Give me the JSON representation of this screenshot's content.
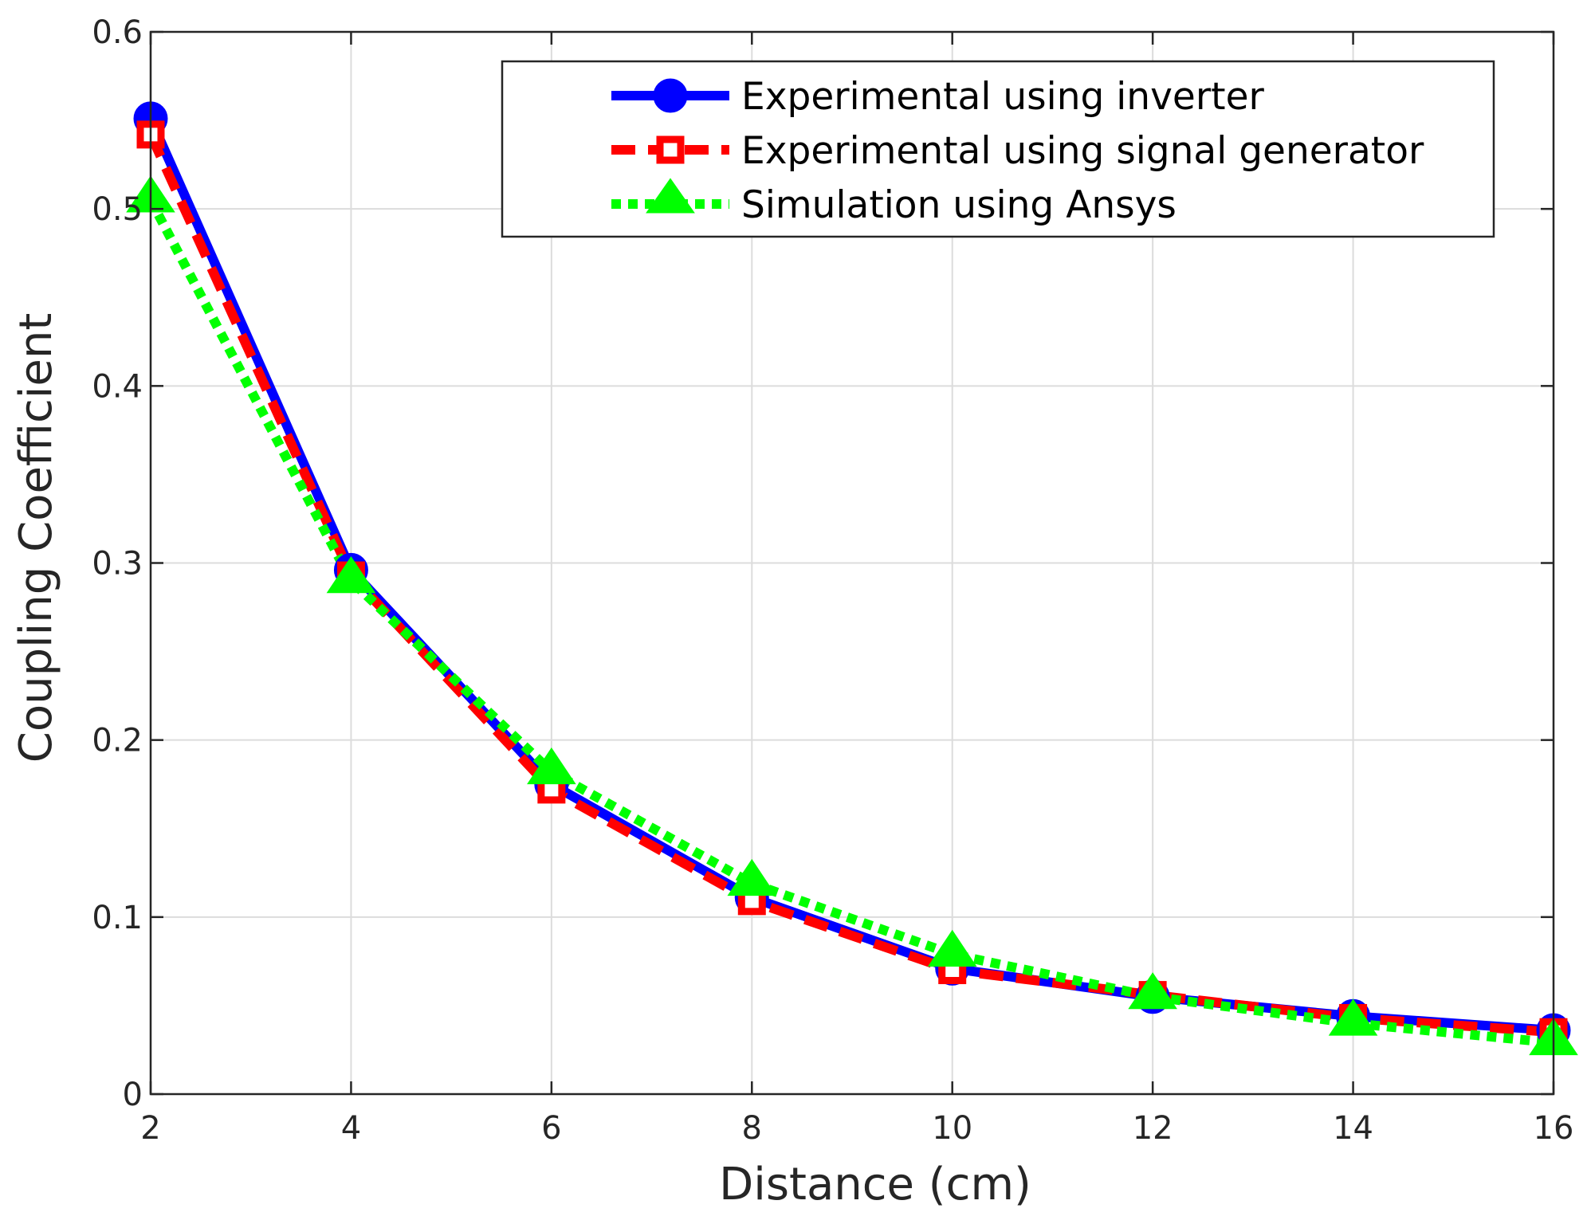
{
  "chart_data": {
    "type": "line",
    "title": "",
    "xlabel": "Distance (cm)",
    "ylabel": "Coupling Coefficient",
    "xlim": [
      2,
      16
    ],
    "ylim": [
      0,
      0.6
    ],
    "xticks": [
      2,
      4,
      6,
      8,
      10,
      12,
      14,
      16
    ],
    "yticks": [
      0,
      0.1,
      0.2,
      0.3,
      0.4,
      0.5,
      0.6
    ],
    "xtick_labels": [
      "2",
      "4",
      "6",
      "8",
      "10",
      "12",
      "14",
      "16"
    ],
    "ytick_labels": [
      "0",
      "0.1",
      "0.2",
      "0.3",
      "0.4",
      "0.5",
      "0.6"
    ],
    "grid": true,
    "legend_position": "top-right",
    "x": [
      2,
      4,
      6,
      8,
      10,
      12,
      14,
      16
    ],
    "series": [
      {
        "name": "Experimental using inverter",
        "color": "#0000ff",
        "line_style": "solid",
        "marker": "circle",
        "values": [
          0.551,
          0.296,
          0.175,
          0.111,
          0.071,
          0.055,
          0.044,
          0.036
        ]
      },
      {
        "name": "Experimental using signal generator",
        "color": "#ff0000",
        "line_style": "dashed",
        "marker": "square",
        "values": [
          0.542,
          0.293,
          0.172,
          0.109,
          0.07,
          0.056,
          0.043,
          0.035
        ]
      },
      {
        "name": "Simulation using Ansys",
        "color": "#00ff00",
        "line_style": "dotted",
        "marker": "triangle",
        "values": [
          0.505,
          0.29,
          0.182,
          0.119,
          0.079,
          0.055,
          0.04,
          0.029
        ]
      }
    ]
  }
}
